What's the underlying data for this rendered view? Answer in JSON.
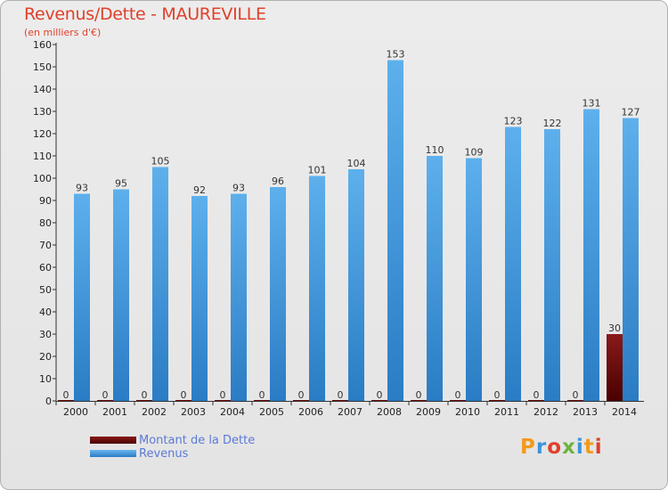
{
  "chart_data": {
    "type": "bar",
    "title": "Revenus/Dette - MAUREVILLE",
    "subtitle": "(en milliers d'€)",
    "categories": [
      "2000",
      "2001",
      "2002",
      "2003",
      "2004",
      "2005",
      "2006",
      "2007",
      "2008",
      "2009",
      "2010",
      "2011",
      "2012",
      "2013",
      "2014"
    ],
    "series": [
      {
        "name": "Montant de la Dette",
        "color": "#6b0a0a",
        "values": [
          0,
          0,
          0,
          0,
          0,
          0,
          0,
          0,
          0,
          0,
          0,
          0,
          0,
          0,
          30
        ]
      },
      {
        "name": "Revenus",
        "color": "#3a94dc",
        "values": [
          93,
          95,
          105,
          92,
          93,
          96,
          101,
          104,
          153,
          110,
          109,
          123,
          122,
          131,
          127
        ]
      }
    ],
    "ylim": [
      0,
      160
    ],
    "yticks": [
      0,
      10,
      20,
      30,
      40,
      50,
      60,
      70,
      80,
      90,
      100,
      110,
      120,
      130,
      140,
      150,
      160
    ],
    "grid": false,
    "legend_position": "bottom-left"
  },
  "logo": {
    "text": "Proxiti",
    "colors": [
      "#f29a1d",
      "#3a94dc",
      "#e0402a",
      "#6cb33f",
      "#3a94dc",
      "#f29a1d",
      "#e0402a"
    ]
  }
}
